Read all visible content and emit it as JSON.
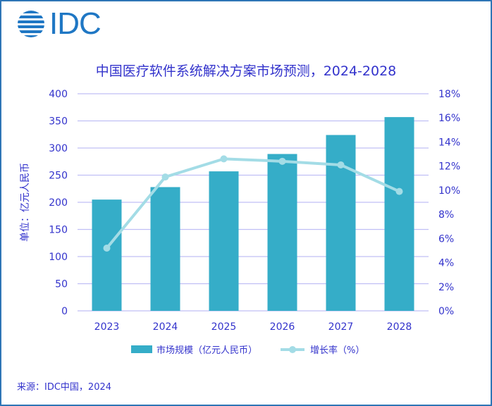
{
  "logo": {
    "text": "IDC"
  },
  "chart_data": {
    "type": "bar",
    "title": "中国医疗软件系统解决方案市场预测，2024-2028",
    "ylabel": "单位：亿元人民币",
    "categories": [
      "2023",
      "2024",
      "2025",
      "2026",
      "2027",
      "2028"
    ],
    "ylim": [
      0,
      400
    ],
    "yticks": [
      "0",
      "50",
      "100",
      "150",
      "200",
      "250",
      "300",
      "350",
      "400"
    ],
    "y2lim": [
      0,
      18
    ],
    "y2ticks": [
      "0%",
      "2%",
      "4%",
      "6%",
      "8%",
      "10%",
      "12%",
      "14%",
      "16%",
      "18%"
    ],
    "grid": true,
    "legend_placement": "bottom",
    "series": [
      {
        "name": "市场规模（亿元人民币）",
        "type": "bar",
        "axis": "left",
        "color": "#35adc8",
        "values": [
          205,
          228,
          257,
          289,
          324,
          357
        ]
      },
      {
        "name": "增长率（%）",
        "type": "line",
        "axis": "right",
        "color": "#a3dce6",
        "values": [
          5.2,
          11.1,
          12.6,
          12.4,
          12.1,
          9.9
        ]
      }
    ]
  },
  "source": "来源：IDC中国，2024",
  "colors": {
    "text": "#3333cc",
    "grid": "#c0bff5",
    "logo": "#1f77c4",
    "border": "#2e75b6"
  }
}
